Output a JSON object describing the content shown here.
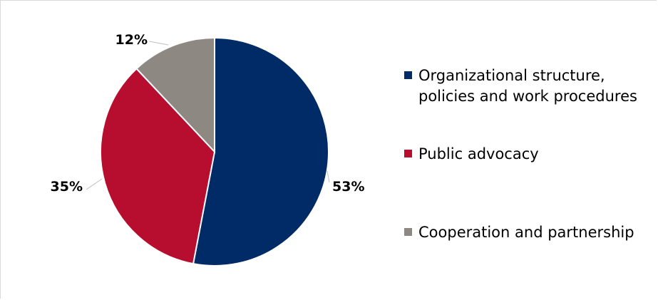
{
  "chart_data": {
    "type": "pie",
    "title": "",
    "series": [
      {
        "name": "Organizational structure, policies and work procedures",
        "value": 53,
        "label": "53%",
        "color": "#002B66"
      },
      {
        "name": "Public advocacy",
        "value": 35,
        "label": "35%",
        "color": "#B70D2E"
      },
      {
        "name": "Cooperation and partnership",
        "value": 12,
        "label": "12%",
        "color": "#8D8882"
      }
    ],
    "legend_position": "right"
  }
}
